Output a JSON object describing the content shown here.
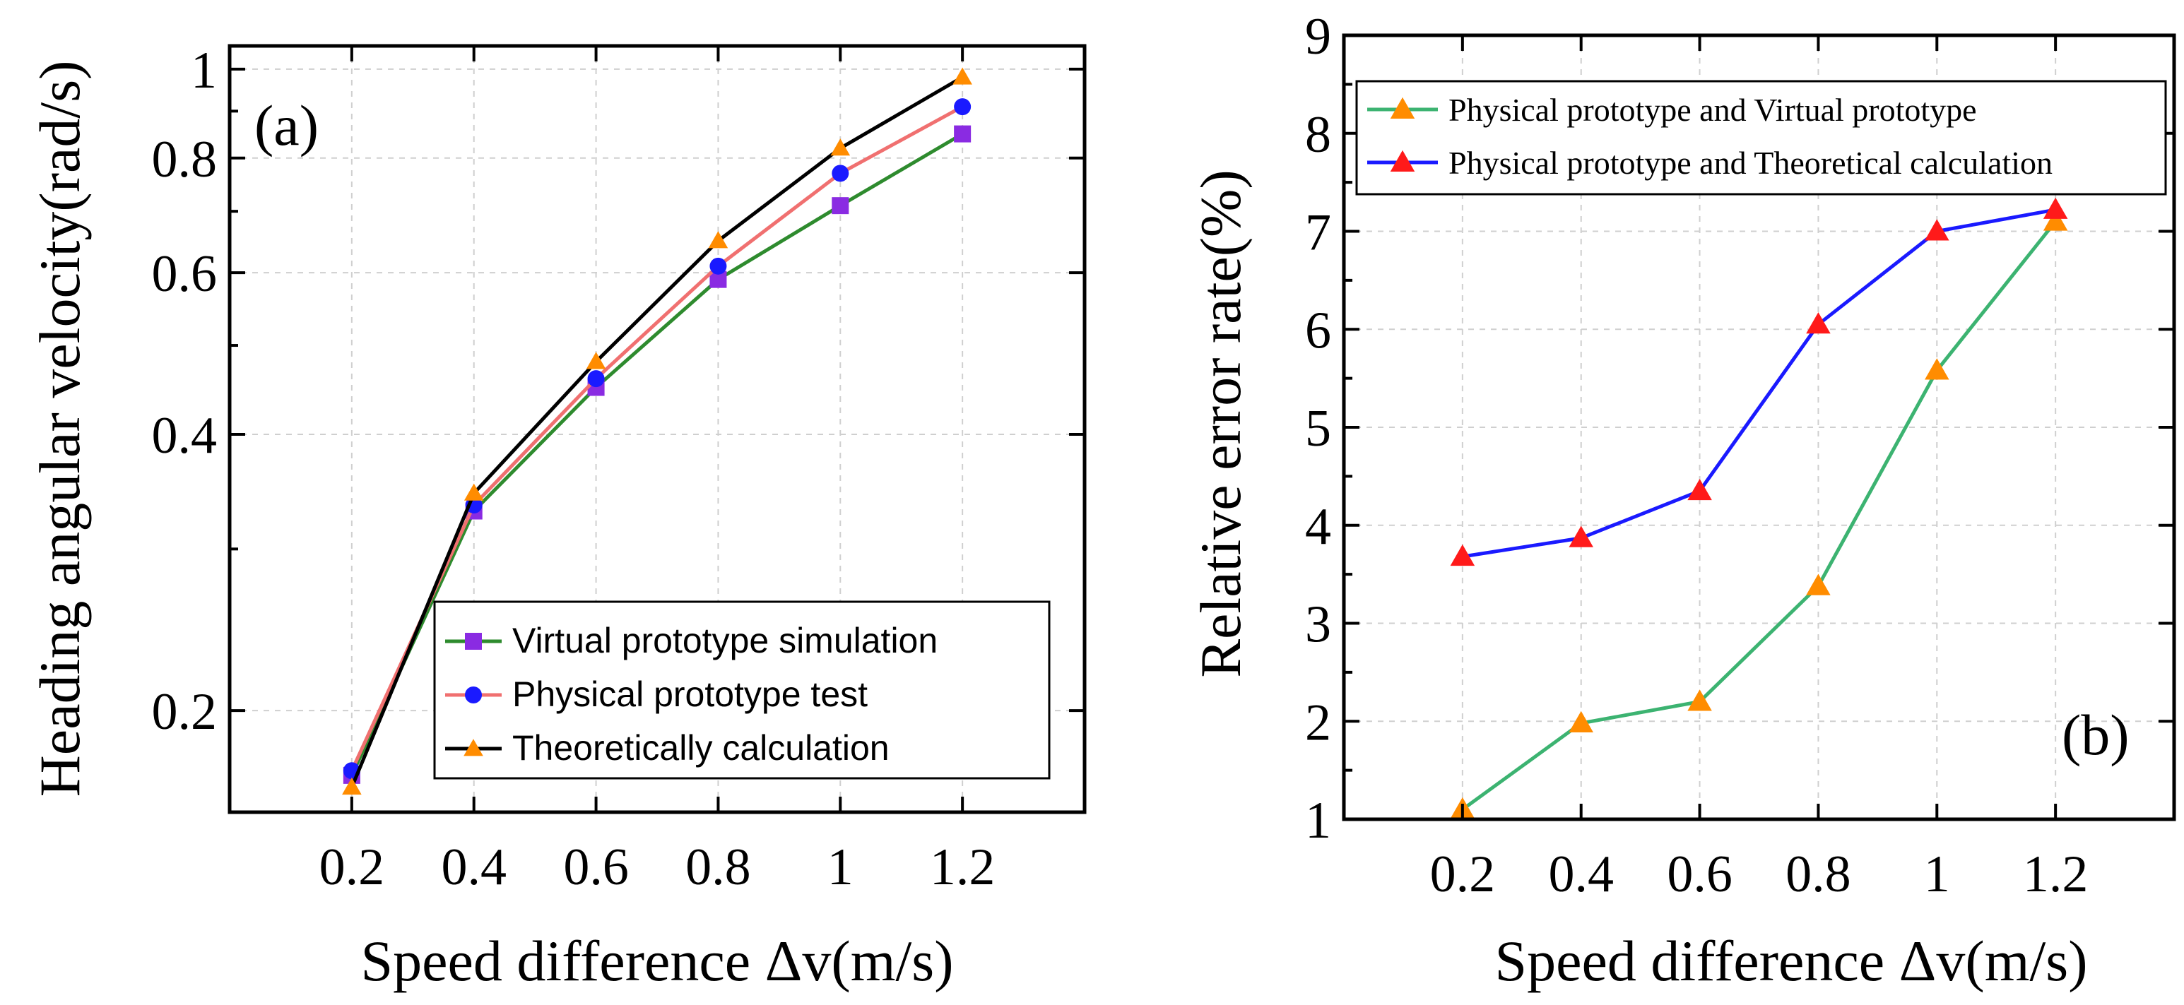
{
  "chart_data": [
    {
      "type": "line",
      "panel_label": "(a)",
      "xlabel": "Speed difference Δv(m/s)",
      "ylabel": "Heading angular velocity(rad/s)",
      "x": [
        0.2,
        0.4,
        0.6,
        0.8,
        1.0,
        1.2
      ],
      "x_tick_labels": [
        "0.2",
        "0.4",
        "0.6",
        "0.8",
        "1",
        "1.2"
      ],
      "y_scale": "log",
      "ylim": [
        0.155,
        1.06
      ],
      "y_ticks": [
        0.2,
        0.4,
        0.6,
        0.8,
        1.0
      ],
      "y_tick_labels": [
        "0.2",
        "0.4",
        "0.6",
        "0.8",
        "1"
      ],
      "grid": true,
      "legend_position": "bottom-right",
      "series": [
        {
          "name": "Virtual prototype simulation",
          "color": "#2e8b2e",
          "marker": "square",
          "marker_color": "#8a2be2",
          "values": [
            0.17,
            0.33,
            0.45,
            0.59,
            0.71,
            0.85
          ]
        },
        {
          "name": "Physical prototype test",
          "color": "#f07070",
          "marker": "circle",
          "marker_color": "#1a1aff",
          "values": [
            0.172,
            0.335,
            0.46,
            0.61,
            0.77,
            0.91
          ]
        },
        {
          "name": "Theoretically calculation",
          "color": "#000000",
          "marker": "triangle",
          "marker_color": "#ff8c00",
          "values": [
            0.165,
            0.345,
            0.48,
            0.65,
            0.82,
            0.98
          ]
        }
      ]
    },
    {
      "type": "line",
      "panel_label": "(b)",
      "xlabel": "Speed difference Δv(m/s)",
      "ylabel": "Relative error rate(%)",
      "x": [
        0.2,
        0.4,
        0.6,
        0.8,
        1.0,
        1.2
      ],
      "x_tick_labels": [
        "0.2",
        "0.4",
        "0.6",
        "0.8",
        "1",
        "1.2"
      ],
      "ylim": [
        1,
        9
      ],
      "y_ticks": [
        1,
        2,
        3,
        4,
        5,
        6,
        7,
        8,
        9
      ],
      "y_tick_labels": [
        "1",
        "2",
        "3",
        "4",
        "5",
        "6",
        "7",
        "8",
        "9"
      ],
      "grid": true,
      "legend_position": "top-right",
      "series": [
        {
          "name": "Physical prototype and Virtual prototype",
          "color": "#3cb371",
          "marker": "triangle",
          "marker_color": "#ff8c00",
          "values": [
            1.1,
            1.98,
            2.2,
            3.38,
            5.58,
            7.1
          ]
        },
        {
          "name": "Physical prototype and Theoretical calculation",
          "color": "#1a1aff",
          "marker": "triangle",
          "marker_color": "#ff1a1a",
          "values": [
            3.68,
            3.87,
            4.35,
            6.05,
            7.0,
            7.22
          ]
        }
      ]
    }
  ]
}
